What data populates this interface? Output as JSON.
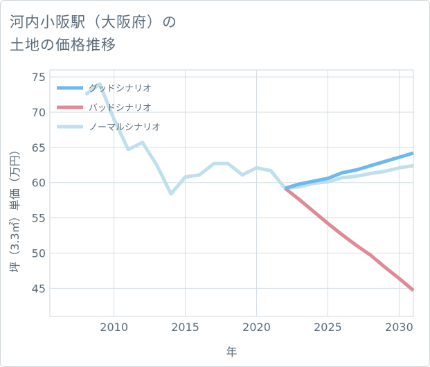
{
  "title_lines": [
    "河内小阪駅（大阪府）の",
    "土地の価格推移"
  ],
  "chart_data": {
    "type": "line",
    "title": "河内小阪駅（大阪府）の土地の価格推移",
    "xlabel": "年",
    "ylabel": "坪（3.3㎡）単価（万円）",
    "xlim": [
      2005.5,
      2031
    ],
    "ylim": [
      41,
      76
    ],
    "x_ticks": [
      2010,
      2015,
      2020,
      2025,
      2030
    ],
    "y_ticks": [
      45,
      50,
      55,
      60,
      65,
      70,
      75
    ],
    "grid": true,
    "legend_position": "top-left",
    "series": [
      {
        "name": "グッドシナリオ",
        "color": "#6cb9ee",
        "x": [
          2022,
          2023,
          2024,
          2025,
          2026,
          2027,
          2028,
          2029,
          2030,
          2031
        ],
        "y": [
          59.2,
          59.8,
          60.2,
          60.6,
          61.4,
          61.8,
          62.4,
          63.0,
          63.6,
          64.2
        ]
      },
      {
        "name": "バッドシナリオ",
        "color": "#df8a95",
        "x": [
          2022,
          2023,
          2024,
          2025,
          2026,
          2027,
          2028,
          2029,
          2030,
          2031
        ],
        "y": [
          59.2,
          57.6,
          55.9,
          54.2,
          52.6,
          51.1,
          49.7,
          48.0,
          46.4,
          44.7
        ]
      },
      {
        "name": "ノーマルシナリオ",
        "color": "#c0dfec",
        "x": [
          2008,
          2009,
          2010,
          2011,
          2012,
          2013,
          2014,
          2015,
          2016,
          2017,
          2018,
          2019,
          2020,
          2021,
          2022,
          2023,
          2024,
          2025,
          2026,
          2027,
          2028,
          2029,
          2030,
          2031
        ],
        "y": [
          72.5,
          74.0,
          69.0,
          64.7,
          65.7,
          62.5,
          58.4,
          60.8,
          61.1,
          62.7,
          62.7,
          61.1,
          62.1,
          61.7,
          59.2,
          59.4,
          59.9,
          60.1,
          60.7,
          60.9,
          61.3,
          61.6,
          62.1,
          62.4
        ]
      }
    ]
  }
}
